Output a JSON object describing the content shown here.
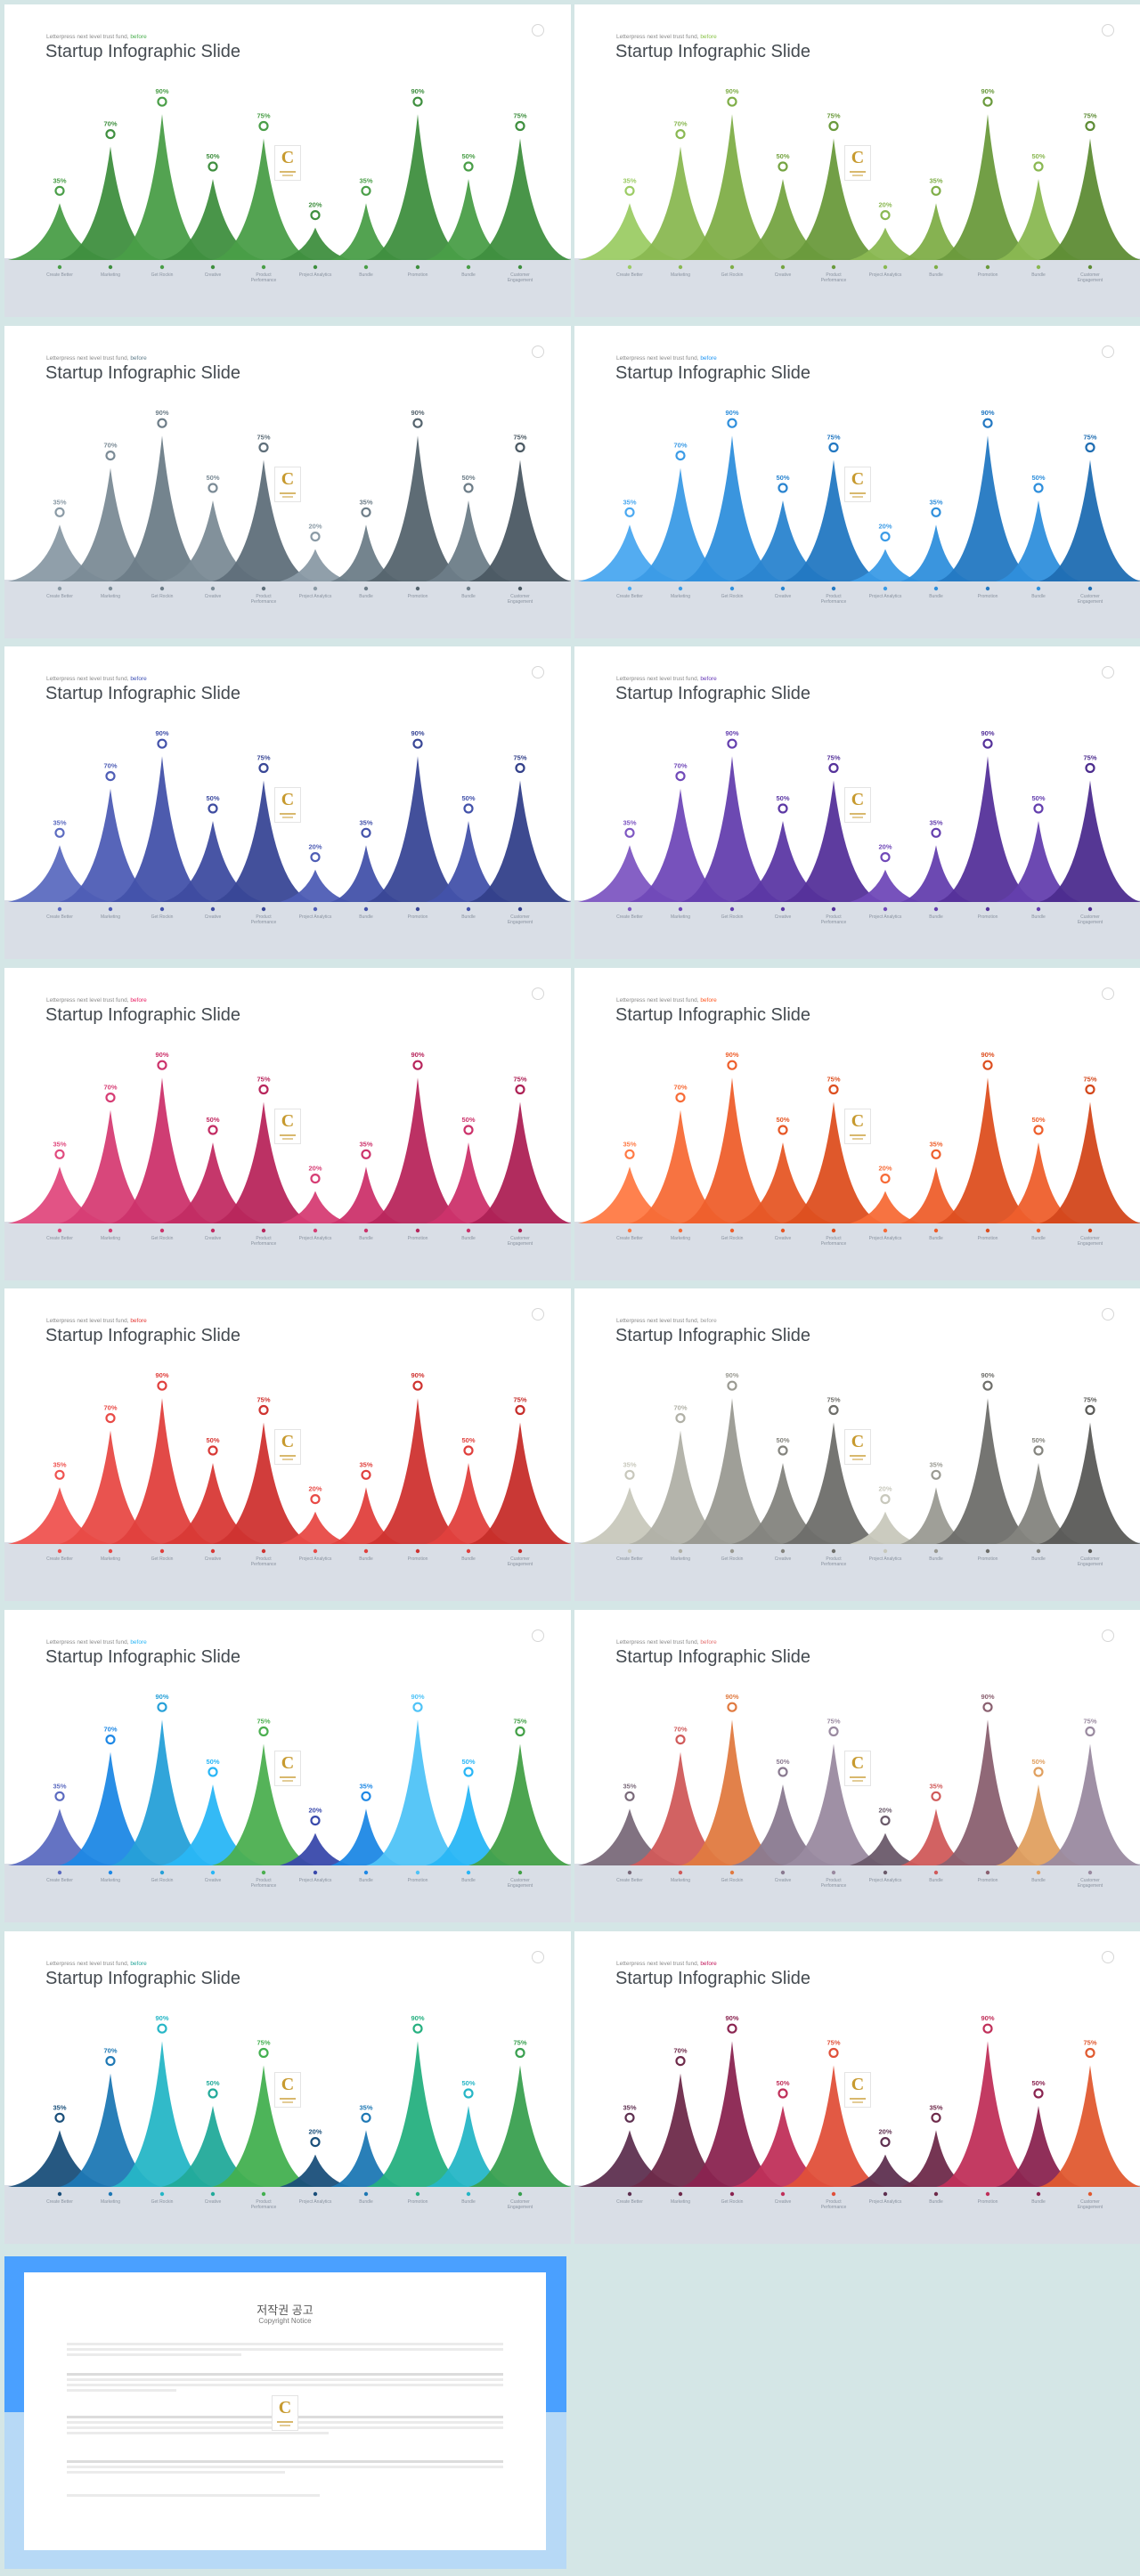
{
  "slide": {
    "subtitle_text": "Letterpress next level trust fund, ",
    "subtitle_accent": "before",
    "title": "Startup Infographic Slide",
    "logo_text": "C"
  },
  "chart_data": {
    "type": "area",
    "values": [
      35,
      70,
      90,
      50,
      75,
      20,
      35,
      90,
      50,
      75
    ],
    "value_labels": [
      "35%",
      "70%",
      "90%",
      "50%",
      "75%",
      "20%",
      "35%",
      "90%",
      "50%",
      "75%"
    ],
    "categories": [
      "Create Better",
      "Marketing",
      "Get Rockin",
      "Creative",
      "Product Performance",
      "Project Analytics",
      "Bundle",
      "Promotion",
      "Bundle",
      "Customer Engagement"
    ]
  },
  "themes": [
    {
      "name": "green",
      "accent": "#4caf50",
      "peaks": [
        "#4a9e48",
        "#3f8f3f",
        "#4a9e48",
        "#3f8f3f",
        "#4a9e48",
        "#3f8f3f",
        "#4a9e48",
        "#3f8f3f",
        "#4a9e48",
        "#3f8f3f"
      ],
      "ring": "#3b8c3b",
      "label": "#3b8c3b"
    },
    {
      "name": "lime",
      "accent": "#8bc34a",
      "peaks": [
        "#9ccc65",
        "#8ab852",
        "#7fae48",
        "#75a442",
        "#6a9a3c",
        "#8ab852",
        "#7fae48",
        "#6a9a3c",
        "#8ab852",
        "#5e8c35"
      ],
      "ring": "#6a9a3c",
      "label": "#7fae48"
    },
    {
      "name": "slate",
      "accent": "#607d8b",
      "peaks": [
        "#8a9aa5",
        "#7b8b96",
        "#6d7d88",
        "#7b8b96",
        "#5f6f7a",
        "#8a9aa5",
        "#6d7d88",
        "#55646e",
        "#6d7d88",
        "#4b5963"
      ],
      "ring": "#55646e",
      "label": "#55646e"
    },
    {
      "name": "blue",
      "accent": "#2196f3",
      "peaks": [
        "#4aa8f0",
        "#3b9be6",
        "#2f8fdc",
        "#2a84cf",
        "#2378c2",
        "#3b9be6",
        "#2f8fdc",
        "#2378c2",
        "#2f8fdc",
        "#1f6db2"
      ],
      "ring": "#2378c2",
      "label": "#2f8fdc"
    },
    {
      "name": "indigo",
      "accent": "#3f51b5",
      "peaks": [
        "#5c6bc0",
        "#4e5db5",
        "#4352aa",
        "#3e4ca0",
        "#394796",
        "#4e5db5",
        "#4352aa",
        "#394796",
        "#4352aa",
        "#33408a"
      ],
      "ring": "#33408a",
      "label": "#3e4ca0"
    },
    {
      "name": "purple",
      "accent": "#673ab7",
      "peaks": [
        "#7e57c2",
        "#7049b8",
        "#643fae",
        "#5c38a4",
        "#55329a",
        "#7049b8",
        "#643fae",
        "#55329a",
        "#643fae",
        "#4c2c8e"
      ],
      "ring": "#4c2c8e",
      "label": "#5c38a4"
    },
    {
      "name": "pink",
      "accent": "#e91e63",
      "peaks": [
        "#e04a7e",
        "#d63d74",
        "#cc336b",
        "#c22c63",
        "#b8265c",
        "#d63d74",
        "#cc336b",
        "#b8265c",
        "#cc336b",
        "#ad2155"
      ],
      "ring": "#ad2155",
      "label": "#c22c63"
    },
    {
      "name": "orange",
      "accent": "#ff5722",
      "peaks": [
        "#ff7a45",
        "#f76b37",
        "#ee5f2c",
        "#e65726",
        "#dd4f20",
        "#f76b37",
        "#ee5f2c",
        "#dd4f20",
        "#ee5f2c",
        "#d3471b"
      ],
      "ring": "#d3471b",
      "label": "#e65726"
    },
    {
      "name": "red",
      "accent": "#e53935",
      "peaks": [
        "#ef5350",
        "#e84a46",
        "#e0403d",
        "#d83936",
        "#cf3330",
        "#e84a46",
        "#e0403d",
        "#cf3330",
        "#e0403d",
        "#c62d2a"
      ],
      "ring": "#c62d2a",
      "label": "#d83936"
    },
    {
      "name": "gray",
      "accent": "#9e9e9e",
      "peaks": [
        "#c8c8bc",
        "#b0b0a6",
        "#9a9a92",
        "#84847e",
        "#6e6e6a",
        "#c8c8bc",
        "#9a9a92",
        "#6e6e6a",
        "#84847e",
        "#5a5a57"
      ],
      "ring": "#5a5a57",
      "label": "#6e6e6a"
    },
    {
      "name": "multi",
      "accent": "#29b6f6",
      "peaks": [
        "#5c6bc0",
        "#1e88e5",
        "#26a0d8",
        "#29b6f6",
        "#4caf50",
        "#3949ab",
        "#1e88e5",
        "#4fc3f7",
        "#29b6f6",
        "#43a047"
      ],
      "ring": "#1e88e5",
      "label": "#29b6f6"
    },
    {
      "name": "muted",
      "accent": "#e57373",
      "peaks": [
        "#7a6a7a",
        "#d05a5a",
        "#e07a40",
        "#8a7a90",
        "#9a8aa0",
        "#6a5a6a",
        "#d05a5a",
        "#8a6070",
        "#e0a060",
        "#9a8aa0"
      ],
      "ring": "#6a5a6a",
      "label": "#6a5a6a"
    },
    {
      "name": "teal",
      "accent": "#26a69a",
      "peaks": [
        "#1a4f7a",
        "#1e78b4",
        "#26b6c6",
        "#22aa9a",
        "#43b050",
        "#1a4f7a",
        "#1e78b4",
        "#26b080",
        "#26b6c6",
        "#3aa050"
      ],
      "ring": "#1a4f7a",
      "label": "#26b6c6"
    },
    {
      "name": "berry",
      "accent": "#c2185b",
      "peaks": [
        "#5e3050",
        "#6e2a4a",
        "#8a2450",
        "#c0305a",
        "#e0503a",
        "#5e3050",
        "#6e2a4a",
        "#c0305a",
        "#8a2450",
        "#e05a30"
      ],
      "ring": "#5e3050",
      "label": "#8a2450"
    }
  ],
  "copyright": {
    "title": "저작권 공고",
    "subtitle": "Copyright Notice",
    "paragraphs": [
      "",
      "",
      "",
      "",
      ""
    ]
  }
}
